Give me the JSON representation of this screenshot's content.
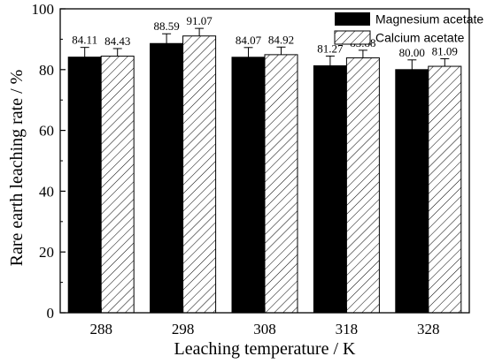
{
  "chart_data": {
    "type": "bar",
    "title": "",
    "xlabel": "Leaching temperature / K",
    "ylabel": "Rare earth leaching rate / %",
    "categories": [
      "288",
      "298",
      "308",
      "318",
      "328"
    ],
    "ylim": [
      0,
      100
    ],
    "yticks": [
      0,
      20,
      40,
      60,
      80,
      100
    ],
    "grid": false,
    "legend_position": "top-right",
    "series": [
      {
        "name": "Magnesium acetate",
        "values": [
          84.11,
          88.59,
          84.07,
          81.27,
          80.0
        ],
        "value_labels": [
          "84.11",
          "88.59",
          "84.07",
          "81.27",
          "80.00"
        ],
        "errors": [
          3.2,
          3.2,
          3.2,
          3.2,
          3.2
        ],
        "fill": "solid",
        "color": "#000000"
      },
      {
        "name": "Calcium acetate",
        "values": [
          84.43,
          91.07,
          84.92,
          83.88,
          81.09
        ],
        "value_labels": [
          "84.43",
          "91.07",
          "84.92",
          "83.88",
          "81.09"
        ],
        "errors": [
          2.5,
          2.5,
          2.5,
          2.5,
          2.5
        ],
        "fill": "diagonal-hatch",
        "color": "#000000"
      }
    ]
  }
}
